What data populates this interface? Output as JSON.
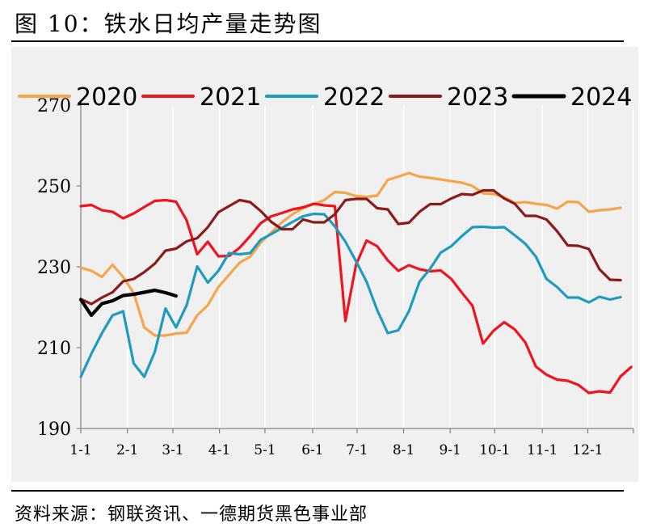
{
  "figure_title": "图 10：铁水日均产量走势图",
  "source_note": "资料来源：钢联资讯、一德期货黑色事业部",
  "chart_data": {
    "type": "line",
    "title": "铁水日均产量走势图",
    "xlabel": "",
    "ylabel": "",
    "ylim": [
      190,
      270
    ],
    "yticks": [
      190,
      210,
      230,
      250,
      270
    ],
    "x_tick_labels": [
      "1-1",
      "2-1",
      "3-1",
      "4-1",
      "5-1",
      "6-1",
      "7-1",
      "8-1",
      "9-1",
      "10-1",
      "11-1",
      "12-1"
    ],
    "x_unit": "week_of_year",
    "legend_position": "top",
    "grid": {
      "horizontal": false,
      "vertical": true
    },
    "series": [
      {
        "name": "2020",
        "color": "#F5A54A",
        "x": [
          1,
          2,
          3,
          4,
          5,
          6,
          7,
          8,
          9,
          10,
          11,
          12,
          13,
          14,
          15,
          16,
          17,
          18,
          19,
          20,
          21,
          22,
          23,
          24,
          25,
          26,
          27,
          28,
          29,
          30,
          31,
          32,
          33,
          34,
          35,
          36,
          37,
          38,
          39,
          40,
          41,
          42,
          43,
          44,
          45,
          46,
          47,
          48,
          49,
          50,
          51,
          52
        ],
        "values": [
          229.8,
          229,
          227.5,
          230.5,
          227.5,
          223.5,
          215,
          213,
          213,
          213.5,
          213.7,
          218,
          220.5,
          225,
          228,
          231,
          232.5,
          236,
          238.5,
          241,
          243,
          244.5,
          245.5,
          246.5,
          248.5,
          248.3,
          247.5,
          247.3,
          247.6,
          251.5,
          252.3,
          253.2,
          252.3,
          252,
          251.6,
          251.2,
          250.8,
          250,
          248.2,
          248,
          247.2,
          245.8,
          246,
          245.6,
          245.3,
          244.4,
          246.1,
          246,
          243.6,
          244,
          244.2,
          244.6
        ]
      },
      {
        "name": "2021",
        "color": "#F0141E",
        "x": [
          1,
          2,
          3,
          4,
          5,
          6,
          7,
          8,
          9,
          10,
          11,
          12,
          13,
          14,
          15,
          16,
          17,
          18,
          19,
          20,
          21,
          22,
          23,
          24,
          25,
          26,
          27,
          28,
          29,
          30,
          31,
          32,
          33,
          34,
          35,
          36,
          37,
          38,
          39,
          40,
          41,
          42,
          43,
          44,
          45,
          46,
          47,
          48,
          49,
          50,
          51,
          52,
          53
        ],
        "values": [
          245,
          245.3,
          244,
          243.6,
          242,
          243.2,
          244.8,
          246.3,
          246.5,
          246.1,
          241.5,
          233.1,
          236.2,
          232.6,
          232.7,
          234.7,
          237.6,
          240.8,
          242.5,
          243.3,
          244.2,
          244.7,
          245.6,
          245.2,
          245,
          216.6,
          230.5,
          236.5,
          235.1,
          231.6,
          229,
          230.4,
          229.4,
          228.9,
          229.1,
          227,
          223.6,
          220.4,
          211,
          214.2,
          216.3,
          214.5,
          211.3,
          205.3,
          203.3,
          202.1,
          201.8,
          200.8,
          198.8,
          199.2,
          198.9,
          202.9,
          205.2
        ]
      },
      {
        "name": "2022",
        "color": "#1E9BBE",
        "x": [
          1,
          2,
          3,
          4,
          5,
          6,
          7,
          8,
          9,
          10,
          11,
          12,
          13,
          14,
          15,
          16,
          17,
          18,
          19,
          20,
          21,
          22,
          23,
          24,
          25,
          26,
          27,
          28,
          29,
          30,
          31,
          32,
          33,
          34,
          35,
          36,
          37,
          38,
          39,
          40,
          41,
          42,
          43,
          44,
          45,
          46,
          47,
          48,
          49,
          50,
          51,
          52
        ],
        "values": [
          202.8,
          208.5,
          213.6,
          218,
          219,
          206.1,
          202.8,
          209,
          219.7,
          215,
          220.5,
          230.1,
          226.1,
          229,
          233.4,
          233.1,
          233.4,
          236.7,
          238.1,
          239.6,
          241.1,
          242.5,
          243.1,
          243,
          240,
          236.2,
          231.4,
          226.3,
          219.3,
          213.6,
          214.3,
          219,
          226.3,
          229.5,
          233.5,
          235.1,
          237.6,
          239.8,
          239.9,
          239.7,
          239.8,
          237.8,
          235.7,
          232.5,
          227,
          225,
          222.4,
          222.4,
          221.2,
          222.6,
          221.9,
          222.5
        ]
      },
      {
        "name": "2023",
        "color": "#8B1A1A",
        "x": [
          1,
          2,
          3,
          4,
          5,
          6,
          7,
          8,
          9,
          10,
          11,
          12,
          13,
          14,
          15,
          16,
          17,
          18,
          19,
          20,
          21,
          22,
          23,
          24,
          25,
          26,
          27,
          28,
          29,
          30,
          31,
          32,
          33,
          34,
          35,
          36,
          37,
          38,
          39,
          40,
          41,
          42,
          43,
          44,
          45,
          46,
          47,
          48,
          49,
          50,
          51,
          52
        ],
        "values": [
          222,
          220.8,
          222.4,
          223.7,
          226.4,
          227,
          228.7,
          230.8,
          234,
          234.5,
          236.3,
          237.1,
          239.8,
          243.5,
          245,
          246.5,
          246,
          243.8,
          241.1,
          239.3,
          239.3,
          241.7,
          241,
          241,
          243,
          246.5,
          246.8,
          246.8,
          244.5,
          244.2,
          240.6,
          240.9,
          243.6,
          245.5,
          245.5,
          246.9,
          248,
          247.8,
          248.9,
          248.9,
          246.9,
          245.6,
          242.6,
          242.6,
          241.7,
          238.8,
          235.3,
          235.2,
          234.4,
          229.4,
          226.8,
          226.7
        ]
      },
      {
        "name": "2024",
        "color": "#000000",
        "x": [
          1,
          2,
          3,
          4,
          5,
          6,
          7,
          8,
          9,
          10
        ],
        "values": [
          221.9,
          218,
          220.9,
          221.6,
          222.9,
          223.2,
          223.7,
          224.2,
          223.6,
          222.8
        ]
      }
    ]
  },
  "colors": {
    "plot_background": "#f0f0f0",
    "gridline": "#ffffff",
    "axis": "#808080"
  }
}
